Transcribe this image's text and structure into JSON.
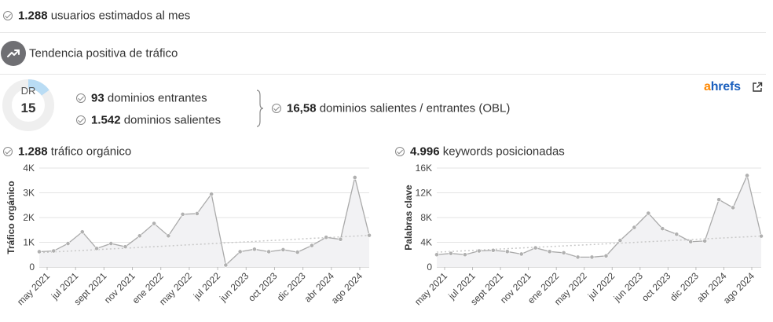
{
  "stats": {
    "users_value": "1.288",
    "users_label": "usuarios estimados al mes",
    "trend_label": "Tendencia positiva de tráfico"
  },
  "dr": {
    "label": "DR",
    "value": "15",
    "fraction": 0.15
  },
  "domains": {
    "incoming_value": "93",
    "incoming_label": "dominios entrantes",
    "outgoing_value": "1.542",
    "outgoing_label": "dominios salientes",
    "obl_value": "16,58",
    "obl_label": "dominios salientes / entrantes (OBL)"
  },
  "brand": {
    "a": "a",
    "rest": "hrefs",
    "icon": "external-link-icon"
  },
  "colors": {
    "line": "#aaaaaa",
    "trend": "#c8c8c8",
    "fill": "#f2f2f4",
    "dr_ring": "#efefef",
    "dr_fill": "#b9dcf4",
    "ahrefs_orange": "#ff8800",
    "ahrefs_blue": "#1a5fbd"
  },
  "chart_data": [
    {
      "type": "area",
      "header_value": "1.288",
      "header_label": "tráfico orgánico",
      "ylabel": "Tráfico orgánico",
      "ylim": [
        0,
        4000
      ],
      "yticks": [
        0,
        1000,
        2000,
        3000,
        4000
      ],
      "ytick_labels": [
        "0",
        "1K",
        "2K",
        "3K",
        "4K"
      ],
      "x_tick_labels": [
        "may 2021",
        "jul 2021",
        "sept 2021",
        "nov 2021",
        "ene 2022",
        "may 2022",
        "jul 2022",
        "jun 2023",
        "oct 2023",
        "dic 2023",
        "abr 2024",
        "ago 2024"
      ],
      "values": [
        620,
        650,
        950,
        1420,
        750,
        950,
        820,
        1260,
        1760,
        1260,
        2130,
        2160,
        2950,
        80,
        620,
        720,
        620,
        700,
        600,
        870,
        1200,
        1120,
        3620,
        1280
      ],
      "trend": [
        580,
        1280
      ]
    },
    {
      "type": "area",
      "header_value": "4.996",
      "header_label": "keywords posicionadas",
      "ylabel": "Palabras clave",
      "ylim": [
        0,
        16000
      ],
      "yticks": [
        0,
        4000,
        8000,
        12000,
        16000
      ],
      "ytick_labels": [
        "0",
        "4K",
        "8K",
        "12K",
        "16K"
      ],
      "x_tick_labels": [
        "may 2021",
        "jul 2021",
        "sept 2021",
        "nov 2021",
        "ene 2022",
        "may 2022",
        "jul 2022",
        "jun 2023",
        "oct 2023",
        "dic 2023",
        "abr 2024",
        "ago 2024"
      ],
      "values": [
        2000,
        2200,
        2000,
        2600,
        2700,
        2500,
        2100,
        3100,
        2500,
        2300,
        1600,
        1600,
        1800,
        4300,
        6400,
        8700,
        6200,
        5300,
        4100,
        4200,
        10900,
        9600,
        14800,
        5000
      ],
      "trend": [
        2400,
        5000
      ]
    }
  ]
}
